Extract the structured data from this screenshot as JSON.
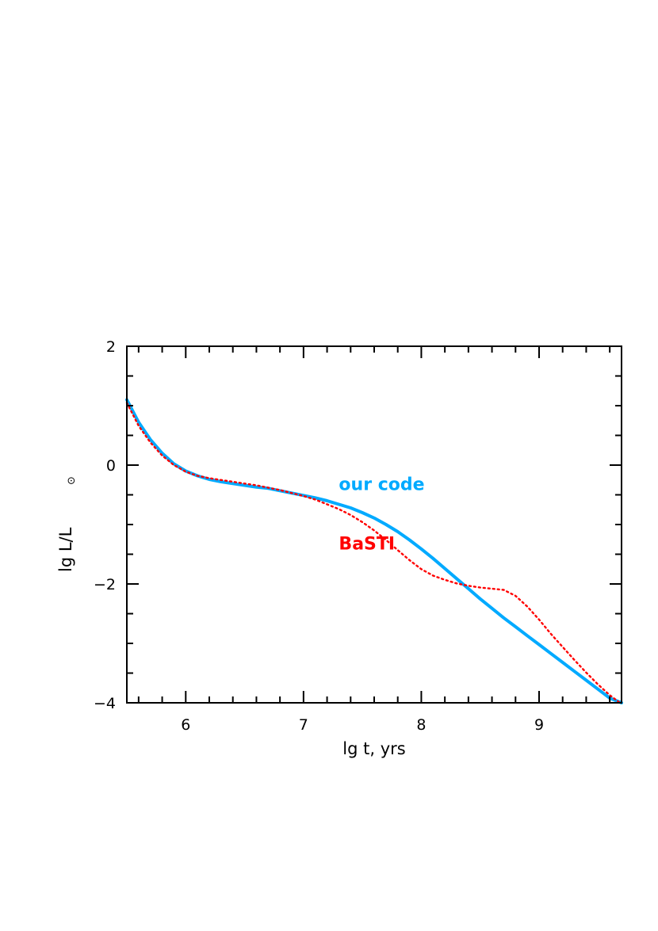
{
  "chart_data": {
    "type": "line",
    "xlabel": "lg t, yrs",
    "ylabel_main": "lg L/L",
    "ylabel_sub": "⊙",
    "xlim": [
      5.5,
      9.7
    ],
    "ylim": [
      -4,
      2
    ],
    "x_ticks": [
      6,
      7,
      8,
      9
    ],
    "x_tick_labels": [
      "6",
      "7",
      "8",
      "9"
    ],
    "y_ticks": [
      -4,
      -2,
      0,
      2
    ],
    "y_tick_labels": [
      "−4",
      "−2",
      "0",
      "2"
    ],
    "x_minor_step": 0.2,
    "y_minor_step": 0.5,
    "grid": false,
    "series": [
      {
        "name": "our code",
        "color": "#00aaff",
        "style": "solid",
        "x": [
          5.5,
          5.6,
          5.7,
          5.8,
          5.9,
          6.0,
          6.1,
          6.2,
          6.3,
          6.4,
          6.5,
          6.6,
          6.7,
          6.8,
          6.9,
          7.0,
          7.1,
          7.2,
          7.3,
          7.4,
          7.5,
          7.6,
          7.7,
          7.8,
          7.9,
          8.0,
          8.1,
          8.2,
          8.3,
          8.4,
          8.5,
          8.6,
          8.7,
          8.8,
          8.9,
          9.0,
          9.1,
          9.2,
          9.3,
          9.4,
          9.5,
          9.6,
          9.7
        ],
        "y": [
          1.1,
          0.72,
          0.43,
          0.2,
          0.02,
          -0.1,
          -0.18,
          -0.24,
          -0.28,
          -0.31,
          -0.34,
          -0.37,
          -0.39,
          -0.43,
          -0.47,
          -0.51,
          -0.55,
          -0.6,
          -0.66,
          -0.72,
          -0.8,
          -0.89,
          -1.0,
          -1.12,
          -1.26,
          -1.41,
          -1.57,
          -1.74,
          -1.91,
          -2.08,
          -2.25,
          -2.41,
          -2.57,
          -2.72,
          -2.87,
          -3.02,
          -3.17,
          -3.32,
          -3.47,
          -3.62,
          -3.77,
          -3.92,
          -4.0
        ]
      },
      {
        "name": "BaSTI",
        "color": "#ff0000",
        "style": "dotted",
        "x": [
          5.5,
          5.6,
          5.7,
          5.8,
          5.9,
          6.0,
          6.1,
          6.2,
          6.3,
          6.4,
          6.5,
          6.6,
          6.7,
          6.8,
          6.9,
          7.0,
          7.1,
          7.2,
          7.3,
          7.4,
          7.5,
          7.6,
          7.7,
          7.8,
          7.9,
          8.0,
          8.1,
          8.2,
          8.3,
          8.4,
          8.5,
          8.6,
          8.7,
          8.8,
          8.9,
          9.0,
          9.1,
          9.2,
          9.3,
          9.4,
          9.5,
          9.6,
          9.7
        ],
        "y": [
          1.05,
          0.66,
          0.38,
          0.16,
          0.0,
          -0.11,
          -0.18,
          -0.22,
          -0.25,
          -0.28,
          -0.31,
          -0.34,
          -0.38,
          -0.42,
          -0.47,
          -0.52,
          -0.58,
          -0.66,
          -0.74,
          -0.84,
          -0.96,
          -1.1,
          -1.26,
          -1.43,
          -1.6,
          -1.75,
          -1.86,
          -1.93,
          -1.99,
          -2.03,
          -2.06,
          -2.08,
          -2.1,
          -2.2,
          -2.38,
          -2.6,
          -2.84,
          -3.06,
          -3.28,
          -3.49,
          -3.69,
          -3.87,
          -4.02
        ]
      }
    ],
    "annotations": [
      {
        "text": "our code",
        "x": 7.3,
        "y": -0.42,
        "color": "#00aaff"
      },
      {
        "text": "BaSTI",
        "x": 7.3,
        "y": -1.42,
        "color": "#ff0000"
      }
    ]
  }
}
